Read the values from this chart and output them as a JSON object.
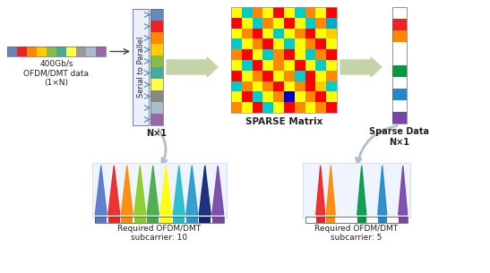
{
  "input_label": "400Gb/s\nOFDM/DMT data\n(1×N)",
  "s2p_label": "Serial to Parallel",
  "nx1_label": "N×1",
  "sparse_matrix_label": "SPARSE Matrix",
  "sparse_data_label": "Sparse Data\nN×1",
  "req_label1": "Required OFDM/DMT\nsubcarrier: 10",
  "req_label2": "Required OFDM/DMT\nsubcarrier: 5",
  "input_colors": [
    "#6688bb",
    "#ee2222",
    "#ff8800",
    "#ffcc00",
    "#88bb44",
    "#44aa99",
    "#ffff44",
    "#999999",
    "#aabbcc",
    "#9966aa"
  ],
  "s2p_colors": [
    "#6688bb",
    "#ee2222",
    "#ff8800",
    "#ffcc00",
    "#88bb44",
    "#44aa99",
    "#ffff44",
    "#888888",
    "#aabbcc",
    "#9966aa"
  ],
  "sparse_data_colors": [
    "#ffffff",
    "#ee2222",
    "#ff8800",
    "#ffffff",
    "#ffffff",
    "#009944",
    "#ffffff",
    "#2288cc",
    "#ffffff",
    "#7744aa"
  ],
  "subcarrier10_colors": [
    "#5577cc",
    "#ee2222",
    "#ff8800",
    "#88cc22",
    "#44aa44",
    "#ffff00",
    "#22bbcc",
    "#2299cc",
    "#112277",
    "#7744aa"
  ],
  "bar10_colors": [
    "#5577cc",
    "#ee2222",
    "#ff8800",
    "#88cc22",
    "#44aa44",
    "#ffff00",
    "#22bbcc",
    "#2299cc",
    "#112277",
    "#7744aa"
  ],
  "bar5_all": [
    "#ffffff",
    "#ee2222",
    "#ff8800",
    "#ffffff",
    "#ffffff",
    "#009944",
    "#ffffff",
    "#2288cc",
    "#ffffff",
    "#7744aa"
  ],
  "active5_colors": [
    "#ee2222",
    "#ff8800",
    "#009944",
    "#2288cc",
    "#7744aa"
  ],
  "active5_idx": [
    1,
    2,
    5,
    7,
    9
  ],
  "sparse_matrix": [
    [
      "#ffff00",
      "#00cccc",
      "#ff8800",
      "#ffff00",
      "#ff0000",
      "#ffff00",
      "#00cccc",
      "#ff8800",
      "#ffff00",
      "#ff0000"
    ],
    [
      "#ff0000",
      "#ffff00",
      "#00cccc",
      "#ff8800",
      "#ffff00",
      "#ff0000",
      "#ffff00",
      "#00cccc",
      "#ff8800",
      "#00aacc"
    ],
    [
      "#ffff00",
      "#ff8800",
      "#ff0000",
      "#ffff00",
      "#00cccc",
      "#ffff00",
      "#ff8800",
      "#ff0000",
      "#ffff00",
      "#ffcc00"
    ],
    [
      "#00cccc",
      "#ffff00",
      "#ff8800",
      "#ff0000",
      "#ffff00",
      "#00cccc",
      "#ffff00",
      "#ff8800",
      "#ff0000",
      "#ffff00"
    ],
    [
      "#ff8800",
      "#ff0000",
      "#ffff00",
      "#00cccc",
      "#ff8800",
      "#ff0000",
      "#ffff00",
      "#00cccc",
      "#ff8800",
      "#ff0000"
    ],
    [
      "#ffff00",
      "#00cccc",
      "#ff0000",
      "#ffff00",
      "#ff8800",
      "#ffff00",
      "#ff0000",
      "#ffff00",
      "#00cccc",
      "#ffff00"
    ],
    [
      "#ff0000",
      "#ffff00",
      "#ff8800",
      "#ff0000",
      "#ffff00",
      "#ff8800",
      "#00cccc",
      "#ff0000",
      "#ffff00",
      "#ff8800"
    ],
    [
      "#00cccc",
      "#ff8800",
      "#ffff00",
      "#ff8800",
      "#ff0000",
      "#ffff00",
      "#ff8800",
      "#ff0000",
      "#ffcc00",
      "#00cccc"
    ],
    [
      "#ffff00",
      "#ff0000",
      "#00cccc",
      "#ffff00",
      "#ff8800",
      "#0000cc",
      "#ffff00",
      "#ff8800",
      "#ff0000",
      "#ffff00"
    ],
    [
      "#ff8800",
      "#ffff00",
      "#ff0000",
      "#00cccc",
      "#ffff00",
      "#ff0000",
      "#ff8800",
      "#ffff00",
      "#ff8800",
      "#ff0000"
    ]
  ],
  "big_arrow_color": "#c5d4a8",
  "curved_arrow_color": "#b0bdd0",
  "s2p_arrow_color": "#4488cc",
  "bg_color": "#ffffff"
}
